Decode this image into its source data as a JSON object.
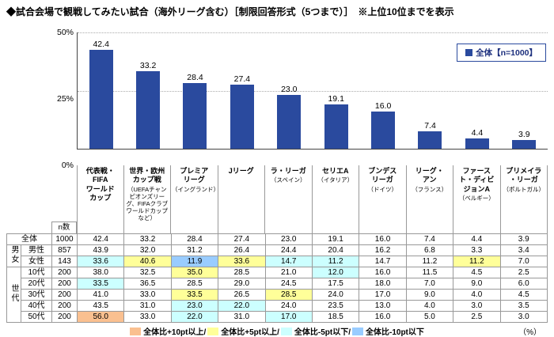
{
  "title": "◆試合会場で観戦してみたい試合（海外リーグ含む）［制限回答形式（5つまで）］　※上位10位までを表示",
  "legend": {
    "series_label": "全体【n=1000】"
  },
  "chart_data": {
    "type": "bar",
    "title": "試合会場で観戦してみたい試合（海外リーグ含む）",
    "series_name": "全体【n=1000】",
    "categories": [
      "代表戦・FIFAワールドカップ",
      "世界・欧州カップ戦（UEFAチャンピオンズリーグ、FIFAクラブワールドカップなど）",
      "プレミアリーグ（イングランド）",
      "Jリーグ",
      "ラ・リーガ（スペイン）",
      "セリエA（イタリア）",
      "ブンデスリーガ（ドイツ）",
      "リーグ・アン（フランス）",
      "ファースト・ディビジョンA（ベルギー）",
      "プリメイラ・リーガ（ポルトガル）"
    ],
    "values": [
      42.4,
      33.2,
      28.4,
      27.4,
      23.0,
      19.1,
      16.0,
      7.4,
      4.4,
      3.9
    ],
    "ylim": [
      0,
      50
    ],
    "yticks": [
      "50%",
      "25%",
      "0%"
    ],
    "grid": "dotted horizontal lines at 25% and 50%",
    "legend_position": "top-right",
    "bar_color": "#2a4a9e"
  },
  "axis_labels": [
    {
      "name": "代表戦・\nFIFA\nワールド\nカップ",
      "note": ""
    },
    {
      "name": "世界・欧州\nカップ戦",
      "note": "（UEFAチャンピオンズリーグ、FIFAクラブワールドカップなど）"
    },
    {
      "name": "プレミア\nリーグ",
      "note": "（イングランド）"
    },
    {
      "name": "Jリーグ",
      "note": ""
    },
    {
      "name": "ラ・リーガ",
      "note": "（スペイン）"
    },
    {
      "name": "セリエA",
      "note": "（イタリア）"
    },
    {
      "name": "ブンデス\nリーガ",
      "note": "（ドイツ）"
    },
    {
      "name": "リーグ・\nアン",
      "note": "（フランス）"
    },
    {
      "name": "ファース\nト・ディビ\nジョンA",
      "note": "（ベルギー）"
    },
    {
      "name": "プリメイラ\n・リーガ",
      "note": "（ポルトガル）"
    }
  ],
  "highlight_colors": {
    "plus10": "#fac090",
    "plus5": "#ffff99",
    "minus5": "#ccffff",
    "minus10": "#99ccff"
  },
  "table": {
    "n_header": "n数",
    "rows": [
      {
        "label": "全体",
        "label_colspan": 2,
        "n": 1000,
        "values": [
          42.4,
          33.2,
          28.4,
          27.4,
          23.0,
          19.1,
          16.0,
          7.4,
          4.4,
          3.9
        ],
        "hl": [
          "",
          "",
          "",
          "",
          "",
          "",
          "",
          "",
          "",
          ""
        ]
      },
      {
        "group": "男女",
        "group_span": 2,
        "label": "男性",
        "n": 857,
        "values": [
          43.9,
          32.0,
          31.2,
          26.4,
          24.4,
          20.4,
          16.2,
          6.8,
          3.3,
          3.4
        ],
        "hl": [
          "",
          "",
          "",
          "",
          "",
          "",
          "",
          "",
          "",
          ""
        ]
      },
      {
        "label": "女性",
        "n": 143,
        "values": [
          33.6,
          40.6,
          11.9,
          33.6,
          14.7,
          11.2,
          14.7,
          11.2,
          11.2,
          7.0
        ],
        "hl": [
          "minus5",
          "plus5",
          "minus10",
          "plus5",
          "minus5",
          "minus5",
          "",
          "",
          "plus5",
          ""
        ]
      },
      {
        "group": "世代",
        "group_span": 5,
        "label": "10代",
        "n": 200,
        "values": [
          38.0,
          32.5,
          35.0,
          28.5,
          21.0,
          12.0,
          16.0,
          11.5,
          4.5,
          2.5
        ],
        "hl": [
          "",
          "",
          "plus5",
          "",
          "",
          "minus5",
          "",
          "",
          "",
          ""
        ]
      },
      {
        "label": "20代",
        "n": 200,
        "values": [
          33.5,
          36.5,
          28.5,
          29.0,
          24.5,
          17.5,
          18.0,
          7.0,
          9.0,
          6.0
        ],
        "hl": [
          "minus5",
          "",
          "",
          "",
          "",
          "",
          "",
          "",
          "",
          ""
        ]
      },
      {
        "label": "30代",
        "n": 200,
        "values": [
          41.0,
          33.0,
          33.5,
          26.5,
          28.5,
          24.0,
          17.0,
          9.0,
          4.0,
          4.5
        ],
        "hl": [
          "",
          "",
          "plus5",
          "",
          "plus5",
          "",
          "",
          "",
          "",
          ""
        ]
      },
      {
        "label": "40代",
        "n": 200,
        "values": [
          43.5,
          31.0,
          23.0,
          22.0,
          24.0,
          23.5,
          13.0,
          4.0,
          3.0,
          3.5
        ],
        "hl": [
          "",
          "",
          "minus5",
          "minus5",
          "",
          "",
          "",
          "",
          "",
          ""
        ]
      },
      {
        "label": "50代",
        "n": 200,
        "values": [
          56.0,
          33.0,
          22.0,
          31.0,
          17.0,
          18.5,
          16.0,
          5.0,
          2.5,
          3.0
        ],
        "hl": [
          "plus10",
          "",
          "minus5",
          "",
          "minus5",
          "",
          "",
          "",
          "",
          ""
        ]
      }
    ]
  },
  "footer": {
    "items": [
      {
        "color": "#fac090",
        "label": "全体比+10pt以上/"
      },
      {
        "color": "#ffff99",
        "label": "全体比+5pt以上/"
      },
      {
        "color": "#ccffff",
        "label": "全体比-5pt以下/"
      },
      {
        "color": "#99ccff",
        "label": "全体比-10pt以下"
      }
    ],
    "percent_label": "（%）"
  }
}
